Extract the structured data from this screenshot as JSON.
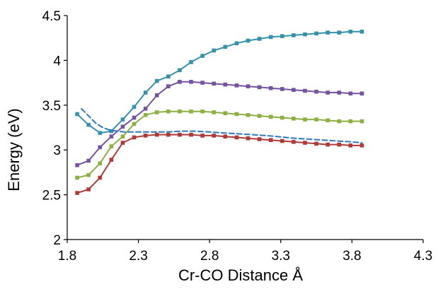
{
  "chart_data": {
    "type": "line",
    "title": "",
    "xlabel": "Cr-CO Distance Å",
    "ylabel": "Energy (eV)",
    "xlim": [
      1.8,
      4.3
    ],
    "ylim": [
      2,
      4.5
    ],
    "xticks": [
      "1.8",
      "2.3",
      "2.8",
      "3.3",
      "3.8",
      "4.3"
    ],
    "yticks": [
      "2",
      "2.5",
      "3",
      "3.5",
      "4",
      "4.5"
    ],
    "grid": false,
    "legend": "none",
    "x": [
      1.87,
      1.95,
      2.03,
      2.11,
      2.19,
      2.27,
      2.35,
      2.43,
      2.51,
      2.59,
      2.67,
      2.75,
      2.83,
      2.91,
      2.99,
      3.07,
      3.15,
      3.23,
      3.31,
      3.39,
      3.47,
      3.55,
      3.63,
      3.71,
      3.79,
      3.87
    ],
    "series": [
      {
        "color": "#b03a38",
        "marker": "square",
        "line_style": "solid",
        "values": [
          2.52,
          2.56,
          2.69,
          2.89,
          3.08,
          3.14,
          3.16,
          3.17,
          3.17,
          3.17,
          3.17,
          3.16,
          3.16,
          3.15,
          3.14,
          3.13,
          3.12,
          3.11,
          3.1,
          3.09,
          3.08,
          3.07,
          3.06,
          3.06,
          3.05,
          3.05
        ]
      },
      {
        "color": "#8db042",
        "marker": "square",
        "line_style": "solid",
        "values": [
          2.69,
          2.72,
          2.85,
          3.04,
          3.15,
          3.29,
          3.39,
          3.42,
          3.43,
          3.43,
          3.43,
          3.43,
          3.42,
          3.41,
          3.4,
          3.39,
          3.38,
          3.37,
          3.36,
          3.35,
          3.34,
          3.34,
          3.33,
          3.32,
          3.32,
          3.32
        ]
      },
      {
        "color": "#7553a0",
        "marker": "square",
        "line_style": "solid",
        "values": [
          2.83,
          2.88,
          3.03,
          3.15,
          3.26,
          3.36,
          3.46,
          3.61,
          3.71,
          3.76,
          3.76,
          3.75,
          3.74,
          3.73,
          3.72,
          3.71,
          3.7,
          3.69,
          3.68,
          3.67,
          3.66,
          3.65,
          3.64,
          3.64,
          3.63,
          3.63
        ]
      },
      {
        "color": "#3592a8",
        "marker": "square",
        "line_style": "solid",
        "values": [
          3.4,
          3.28,
          3.19,
          3.21,
          3.34,
          3.48,
          3.64,
          3.77,
          3.82,
          3.89,
          3.98,
          4.05,
          4.11,
          4.15,
          4.19,
          4.22,
          4.24,
          4.26,
          4.27,
          4.28,
          4.29,
          4.3,
          4.31,
          4.31,
          4.32,
          4.32
        ]
      },
      {
        "color": "#2f76c0",
        "marker": "none",
        "line_style": "dashed",
        "x": [
          1.9,
          1.95,
          2.0,
          2.05,
          2.1,
          2.2,
          2.3,
          2.4,
          2.5,
          2.6,
          2.7,
          2.8,
          2.9,
          3.0,
          3.2,
          3.4,
          3.6,
          3.8,
          3.87
        ],
        "values": [
          3.46,
          3.38,
          3.3,
          3.25,
          3.22,
          3.2,
          3.2,
          3.2,
          3.2,
          3.21,
          3.21,
          3.2,
          3.19,
          3.18,
          3.16,
          3.13,
          3.11,
          3.09,
          3.08
        ]
      }
    ]
  }
}
